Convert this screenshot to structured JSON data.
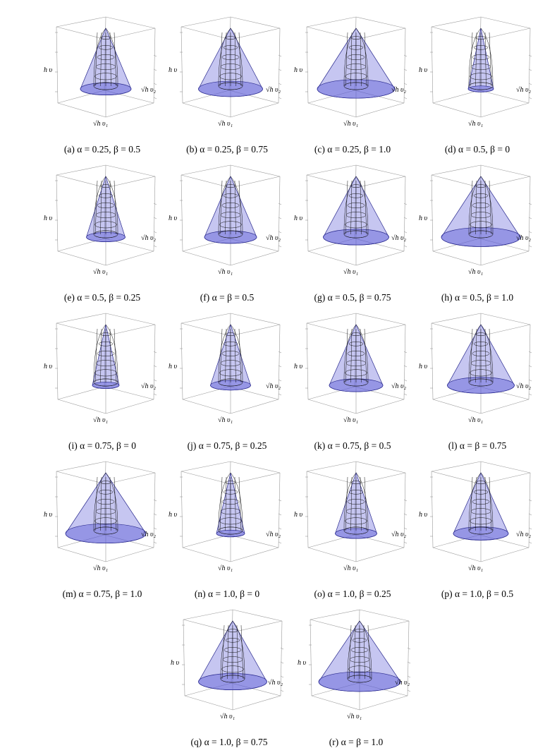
{
  "axis_labels": {
    "z": "h υ",
    "x": "√h υ₁",
    "y": "√h υ₂"
  },
  "colors": {
    "cone_fill": "#5b5bd6",
    "cone_edge": "#2b2b8f",
    "box": "#9a9a9a",
    "wire": "#111111"
  },
  "panels": [
    {
      "caption": "(a)  α = 0.25, β = 0.5",
      "alpha": 0.25,
      "beta": 0.5
    },
    {
      "caption": "(b)  α = 0.25, β = 0.75",
      "alpha": 0.25,
      "beta": 0.75
    },
    {
      "caption": "(c)  α = 0.25, β = 1.0",
      "alpha": 0.25,
      "beta": 1.0
    },
    {
      "caption": "(d)  α = 0.5, β = 0",
      "alpha": 0.5,
      "beta": 0
    },
    {
      "caption": "(e)  α = 0.5, β = 0.25",
      "alpha": 0.5,
      "beta": 0.25
    },
    {
      "caption": "(f)  α = β = 0.5",
      "alpha": 0.5,
      "beta": 0.5
    },
    {
      "caption": "(g)  α = 0.5, β = 0.75",
      "alpha": 0.5,
      "beta": 0.75
    },
    {
      "caption": "(h)  α = 0.5, β = 1.0",
      "alpha": 0.5,
      "beta": 1.0
    },
    {
      "caption": "(i)  α = 0.75, β = 0",
      "alpha": 0.75,
      "beta": 0
    },
    {
      "caption": "(j)  α = 0.75, β = 0.25",
      "alpha": 0.75,
      "beta": 0.25
    },
    {
      "caption": "(k)  α = 0.75, β = 0.5",
      "alpha": 0.75,
      "beta": 0.5
    },
    {
      "caption": "(l)  α = β = 0.75",
      "alpha": 0.75,
      "beta": 0.75
    },
    {
      "caption": "(m)  α = 0.75, β = 1.0",
      "alpha": 0.75,
      "beta": 1.0
    },
    {
      "caption": "(n)  α = 1.0, β = 0",
      "alpha": 1.0,
      "beta": 0
    },
    {
      "caption": "(o)  α = 1.0, β = 0.25",
      "alpha": 1.0,
      "beta": 0.25
    },
    {
      "caption": "(p)  α = 1.0, β = 0.5",
      "alpha": 1.0,
      "beta": 0.5
    },
    {
      "caption": "(q)  α = 1.0, β = 0.75",
      "alpha": 1.0,
      "beta": 0.75
    },
    {
      "caption": "(r)  α = β = 1.0",
      "alpha": 1.0,
      "beta": 1.0
    }
  ]
}
